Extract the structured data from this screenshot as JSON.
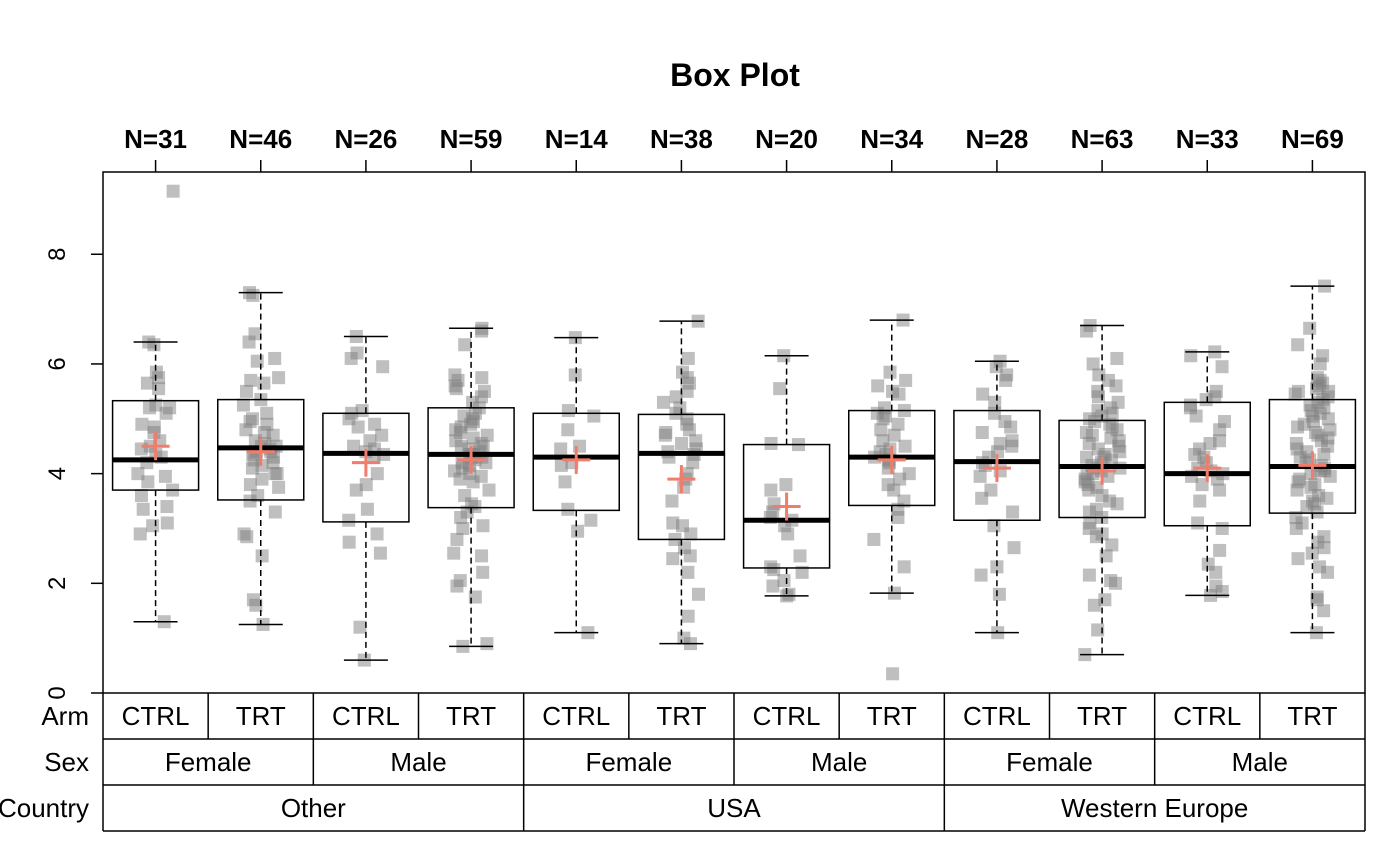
{
  "chart_data": {
    "type": "box",
    "title": "Box Plot",
    "xlabel": "",
    "ylabel": "",
    "ylim": [
      0,
      9.5
    ],
    "y_ticks": [
      0,
      2,
      4,
      6,
      8
    ],
    "grid": false,
    "row_labels": [
      "Arm",
      "Sex",
      "Country"
    ],
    "mean_color": "#f07c6c",
    "point_color": "#808080",
    "country_groups": [
      "Other",
      "USA",
      "Western Europe"
    ],
    "sex_groups": [
      "Female",
      "Male",
      "Female",
      "Male",
      "Female",
      "Male"
    ],
    "boxes": [
      {
        "arm": "CTRL",
        "n_label": "N=31",
        "whisker_low": 1.3,
        "q1": 3.7,
        "median": 4.25,
        "q3": 5.33,
        "whisker_high": 6.4,
        "mean": 4.5,
        "points": [
          1.3,
          2.9,
          3.05,
          3.1,
          3.35,
          3.4,
          3.6,
          3.7,
          3.85,
          3.95,
          4.0,
          4.2,
          4.3,
          4.35,
          4.45,
          4.5,
          4.6,
          4.75,
          4.85,
          4.9,
          5.1,
          5.2,
          5.2,
          5.25,
          5.55,
          5.65,
          5.75,
          5.85,
          6.35,
          6.4,
          9.15
        ]
      },
      {
        "arm": "TRT",
        "n_label": "N=46",
        "whisker_low": 1.25,
        "q1": 3.52,
        "median": 4.47,
        "q3": 5.35,
        "whisker_high": 7.3,
        "mean": 4.4,
        "points": [
          1.25,
          1.6,
          1.7,
          2.5,
          2.85,
          2.9,
          3.3,
          3.5,
          3.6,
          3.75,
          3.8,
          3.9,
          4.0,
          4.0,
          4.1,
          4.15,
          4.2,
          4.25,
          4.3,
          4.35,
          4.4,
          4.4,
          4.45,
          4.5,
          4.5,
          4.55,
          4.6,
          4.7,
          4.75,
          4.8,
          4.9,
          4.95,
          5.0,
          5.1,
          5.25,
          5.35,
          5.5,
          5.65,
          5.7,
          5.75,
          6.05,
          6.1,
          6.4,
          6.55,
          7.25,
          7.3
        ]
      },
      {
        "arm": "CTRL",
        "n_label": "N=26",
        "whisker_low": 0.6,
        "q1": 3.12,
        "median": 4.37,
        "q3": 5.1,
        "whisker_high": 6.5,
        "mean": 4.2,
        "points": [
          0.6,
          1.2,
          2.55,
          2.75,
          2.9,
          3.15,
          3.35,
          3.7,
          3.8,
          4.0,
          4.3,
          4.35,
          4.4,
          4.45,
          4.5,
          4.6,
          4.7,
          4.85,
          4.9,
          5.0,
          5.1,
          5.15,
          5.95,
          6.1,
          6.2,
          6.5
        ]
      },
      {
        "arm": "TRT",
        "n_label": "N=59",
        "whisker_low": 0.85,
        "q1": 3.38,
        "median": 4.35,
        "q3": 5.2,
        "whisker_high": 6.65,
        "mean": 4.25,
        "points": [
          0.85,
          0.9,
          1.75,
          1.95,
          2.05,
          2.2,
          2.5,
          2.55,
          2.8,
          3.0,
          3.05,
          3.2,
          3.3,
          3.4,
          3.45,
          3.6,
          3.7,
          3.85,
          3.9,
          3.95,
          4.0,
          4.05,
          4.1,
          4.15,
          4.2,
          4.2,
          4.25,
          4.3,
          4.3,
          4.35,
          4.35,
          4.4,
          4.45,
          4.5,
          4.5,
          4.55,
          4.6,
          4.65,
          4.7,
          4.75,
          4.8,
          4.85,
          4.9,
          4.95,
          5.0,
          5.05,
          5.1,
          5.2,
          5.3,
          5.4,
          5.5,
          5.55,
          5.6,
          5.7,
          5.75,
          5.8,
          6.35,
          6.6,
          6.65
        ]
      },
      {
        "arm": "CTRL",
        "n_label": "N=14",
        "whisker_low": 1.1,
        "q1": 3.33,
        "median": 4.3,
        "q3": 5.1,
        "whisker_high": 6.48,
        "mean": 4.25,
        "points": [
          1.1,
          2.95,
          3.15,
          3.35,
          3.85,
          4.15,
          4.2,
          4.45,
          4.5,
          4.8,
          5.05,
          5.15,
          5.8,
          6.48
        ]
      },
      {
        "arm": "TRT",
        "n_label": "N=38",
        "whisker_low": 0.9,
        "q1": 2.8,
        "median": 4.37,
        "q3": 5.08,
        "whisker_high": 6.78,
        "mean": 3.9,
        "points": [
          0.9,
          1.0,
          1.4,
          1.8,
          2.2,
          2.45,
          2.5,
          2.65,
          2.8,
          2.9,
          3.05,
          3.1,
          3.5,
          3.75,
          3.9,
          4.0,
          4.2,
          4.3,
          4.35,
          4.4,
          4.45,
          4.55,
          4.6,
          4.7,
          4.75,
          4.8,
          4.9,
          5.0,
          5.1,
          5.2,
          5.3,
          5.4,
          5.5,
          5.65,
          5.75,
          5.85,
          6.1,
          6.78
        ]
      },
      {
        "arm": "CTRL",
        "n_label": "N=20",
        "whisker_low": 1.77,
        "q1": 2.28,
        "median": 3.15,
        "q3": 4.53,
        "whisker_high": 6.15,
        "mean": 3.4,
        "points": [
          1.77,
          1.8,
          1.95,
          2.05,
          2.2,
          2.25,
          2.3,
          2.5,
          2.9,
          3.05,
          3.15,
          3.2,
          3.3,
          3.45,
          3.7,
          3.8,
          4.53,
          4.55,
          5.55,
          6.15
        ]
      },
      {
        "arm": "TRT",
        "n_label": "N=34",
        "whisker_low": 1.82,
        "q1": 3.42,
        "median": 4.3,
        "q3": 5.15,
        "whisker_high": 6.8,
        "mean": 4.25,
        "points": [
          0.35,
          1.82,
          2.3,
          2.8,
          3.2,
          3.35,
          3.5,
          3.7,
          3.8,
          3.9,
          4.0,
          4.1,
          4.2,
          4.25,
          4.3,
          4.35,
          4.4,
          4.45,
          4.5,
          4.6,
          4.7,
          4.8,
          4.9,
          5.0,
          5.05,
          5.1,
          5.15,
          5.2,
          5.45,
          5.5,
          5.6,
          5.7,
          5.85,
          6.8
        ]
      },
      {
        "arm": "CTRL",
        "n_label": "N=28",
        "whisker_low": 1.1,
        "q1": 3.15,
        "median": 4.22,
        "q3": 5.15,
        "whisker_high": 6.05,
        "mean": 4.1,
        "points": [
          1.1,
          1.8,
          2.15,
          2.3,
          2.65,
          3.05,
          3.3,
          3.55,
          3.7,
          3.95,
          4.05,
          4.15,
          4.2,
          4.3,
          4.4,
          4.5,
          4.55,
          4.6,
          4.75,
          4.85,
          4.95,
          5.1,
          5.3,
          5.45,
          5.7,
          5.8,
          5.95,
          6.05
        ]
      },
      {
        "arm": "TRT",
        "n_label": "N=63",
        "whisker_low": 0.7,
        "q1": 3.2,
        "median": 4.13,
        "q3": 4.97,
        "whisker_high": 6.7,
        "mean": 4.05,
        "points": [
          0.7,
          1.15,
          1.6,
          1.7,
          2.0,
          2.05,
          2.15,
          2.5,
          2.7,
          2.85,
          2.9,
          3.0,
          3.1,
          3.2,
          3.3,
          3.35,
          3.45,
          3.5,
          3.6,
          3.7,
          3.75,
          3.8,
          3.85,
          3.9,
          3.95,
          4.0,
          4.0,
          4.05,
          4.1,
          4.1,
          4.15,
          4.2,
          4.25,
          4.3,
          4.3,
          4.35,
          4.4,
          4.45,
          4.5,
          4.55,
          4.6,
          4.65,
          4.7,
          4.75,
          4.8,
          4.85,
          4.9,
          4.95,
          5.0,
          5.05,
          5.1,
          5.15,
          5.2,
          5.3,
          5.4,
          5.5,
          5.6,
          5.7,
          5.8,
          6.0,
          6.1,
          6.6,
          6.7
        ]
      },
      {
        "arm": "CTRL",
        "n_label": "N=33",
        "whisker_low": 1.78,
        "q1": 3.05,
        "median": 4.0,
        "q3": 5.3,
        "whisker_high": 6.22,
        "mean": 4.1,
        "points": [
          1.78,
          1.85,
          1.95,
          2.2,
          2.35,
          2.6,
          3.0,
          3.1,
          3.5,
          3.7,
          3.8,
          3.9,
          3.95,
          4.0,
          4.05,
          4.1,
          4.2,
          4.3,
          4.35,
          4.45,
          4.55,
          4.6,
          4.8,
          4.95,
          5.05,
          5.2,
          5.25,
          5.35,
          5.4,
          5.5,
          5.95,
          6.15,
          6.22
        ]
      },
      {
        "arm": "TRT",
        "n_label": "N=69",
        "whisker_low": 1.1,
        "q1": 3.28,
        "median": 4.13,
        "q3": 5.35,
        "whisker_high": 7.42,
        "mean": 4.15,
        "points": [
          1.1,
          1.5,
          1.7,
          1.75,
          2.2,
          2.3,
          2.45,
          2.55,
          2.65,
          2.75,
          2.85,
          3.0,
          3.1,
          3.2,
          3.3,
          3.4,
          3.45,
          3.5,
          3.55,
          3.6,
          3.7,
          3.75,
          3.8,
          3.85,
          3.9,
          3.95,
          4.0,
          4.05,
          4.05,
          4.1,
          4.15,
          4.2,
          4.25,
          4.3,
          4.35,
          4.4,
          4.45,
          4.5,
          4.55,
          4.6,
          4.65,
          4.7,
          4.75,
          4.8,
          4.85,
          4.9,
          4.95,
          5.0,
          5.05,
          5.1,
          5.15,
          5.2,
          5.25,
          5.3,
          5.35,
          5.4,
          5.45,
          5.5,
          5.5,
          5.55,
          5.6,
          5.65,
          5.7,
          5.75,
          6.0,
          6.15,
          6.35,
          6.65,
          7.42
        ]
      }
    ]
  }
}
